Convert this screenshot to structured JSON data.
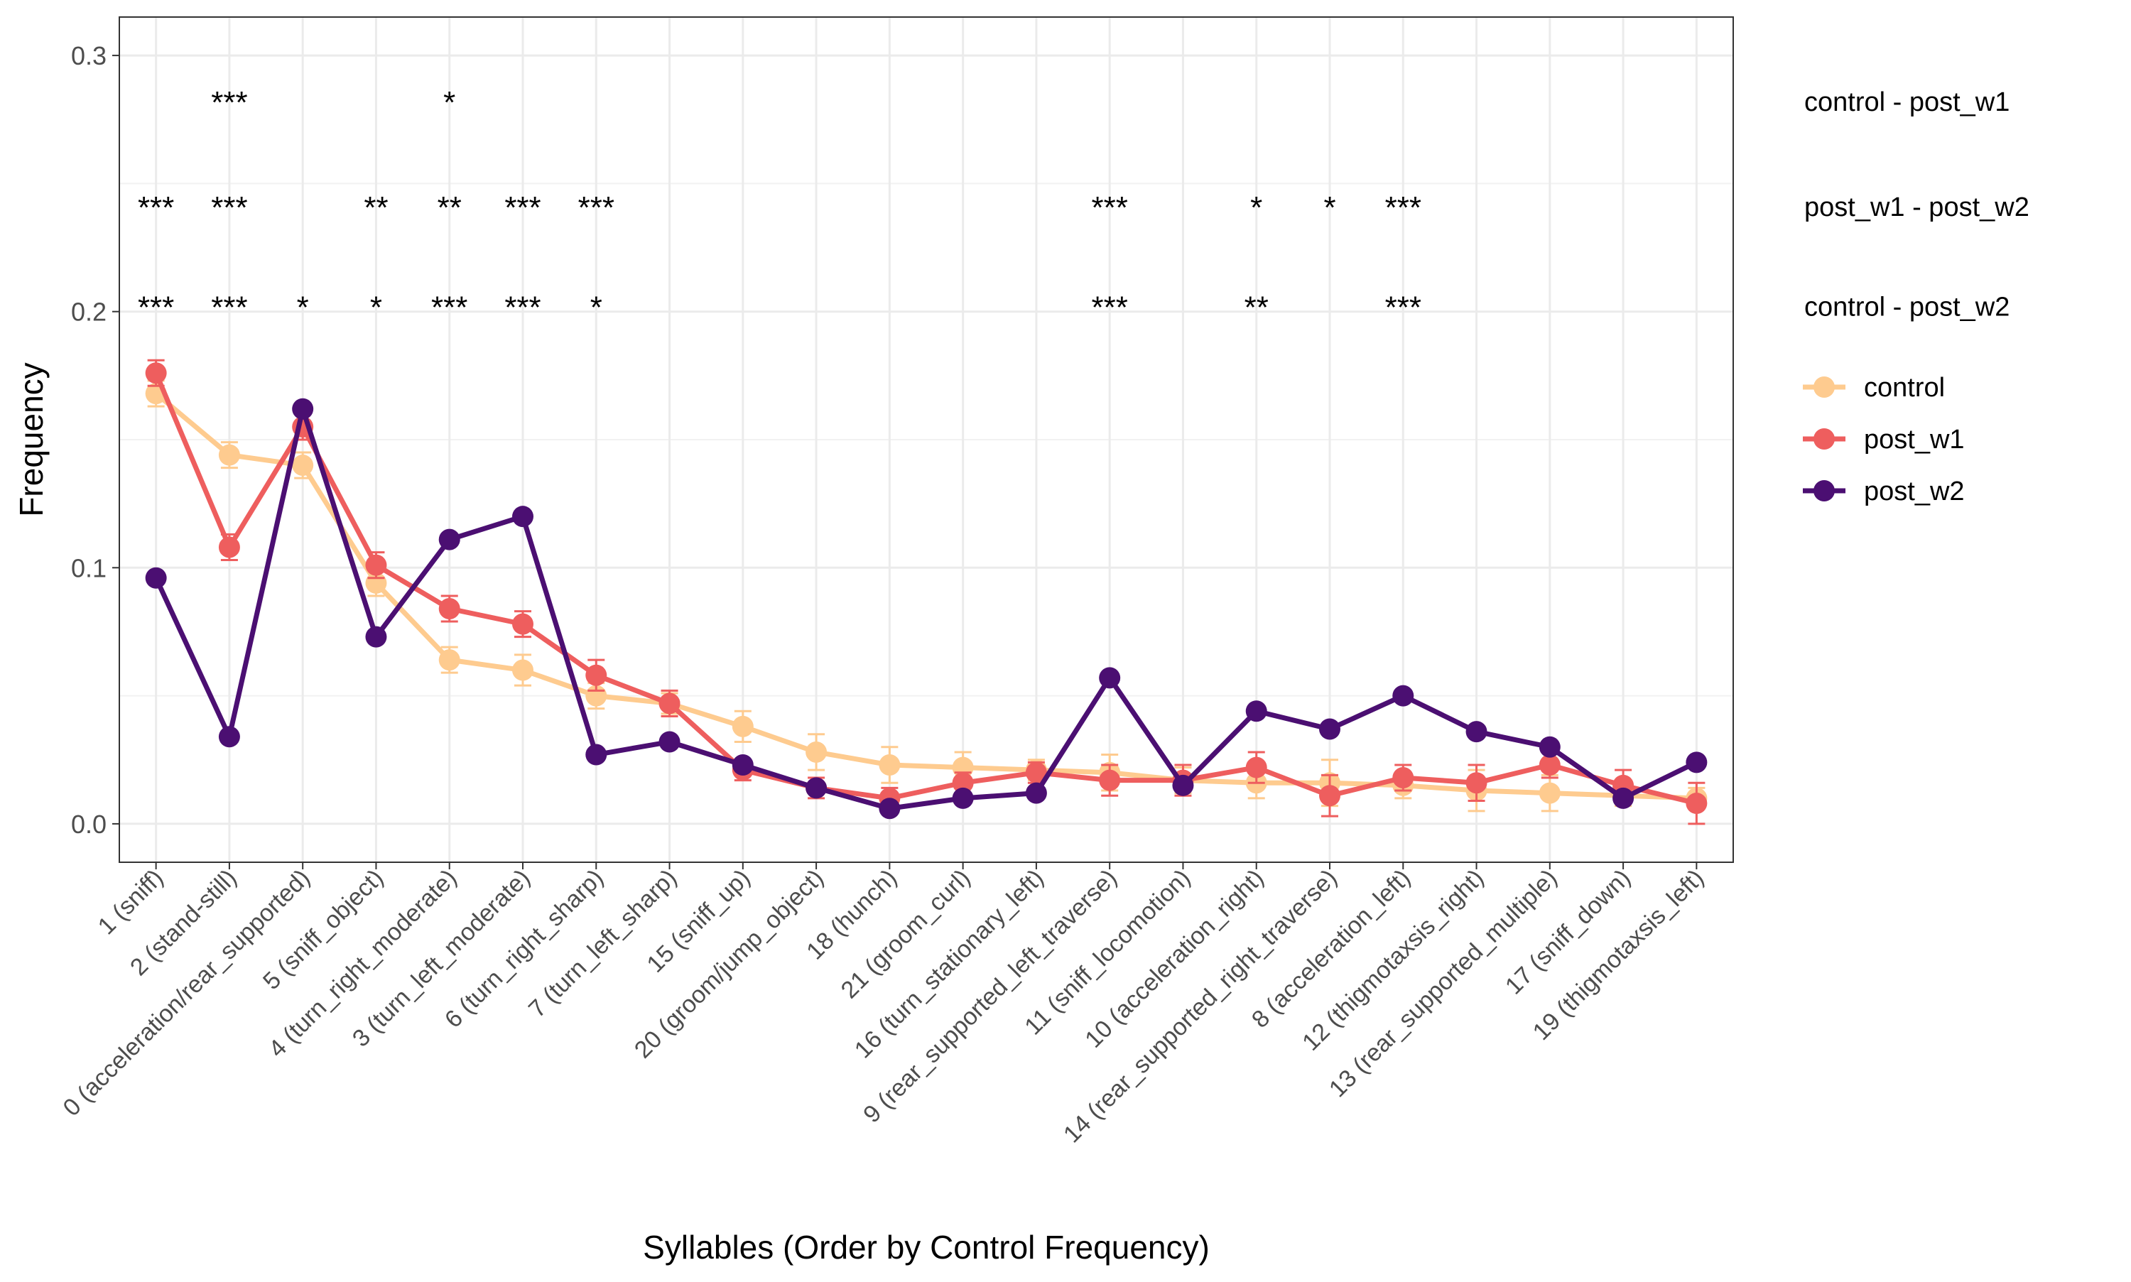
{
  "chart_data": {
    "type": "line",
    "title": "",
    "xlabel": "Syllables (Order by Control Frequency)",
    "ylabel": "Frequency",
    "ylim": [
      -0.015,
      0.315
    ],
    "yticks": [
      0.0,
      0.1,
      0.2,
      0.3
    ],
    "ytick_labels": [
      "0.0",
      "0.1",
      "0.2",
      "0.3"
    ],
    "grid": true,
    "legend_position": "right",
    "categories": [
      "1 (sniff)",
      "2 (stand-still)",
      "0 (acceleration/rear_supported)",
      "5 (sniff_object)",
      "4 (turn_right_moderate)",
      "3 (turn_left_moderate)",
      "6 (turn_right_sharp)",
      "7 (turn_left_sharp)",
      "15 (sniff_up)",
      "20 (groom/jump_object)",
      "18 (hunch)",
      "21 (groom_curl)",
      "16 (turn_stationary_left)",
      "9 (rear_supported_left_traverse)",
      "11 (sniff_locomotion)",
      "10 (acceleration_right)",
      "14 (rear_supported_right_traverse)",
      "8 (acceleration_left)",
      "12 (thigmotaxsis_right)",
      "13 (rear_supported_multiple)",
      "17 (sniff_down)",
      "19 (thigmotaxsis_left)"
    ],
    "series": [
      {
        "name": "control",
        "color": "#FECB8F",
        "values": [
          0.168,
          0.144,
          0.14,
          0.094,
          0.064,
          0.06,
          0.05,
          0.047,
          0.038,
          0.028,
          0.023,
          0.022,
          0.021,
          0.02,
          0.017,
          0.016,
          0.016,
          0.015,
          0.013,
          0.012,
          0.011,
          0.01
        ],
        "errors": [
          0.005,
          0.005,
          0.005,
          0.005,
          0.005,
          0.006,
          0.005,
          0.004,
          0.006,
          0.007,
          0.007,
          0.006,
          0.004,
          0.007,
          0.005,
          0.006,
          0.009,
          0.005,
          0.008,
          0.007,
          0.004,
          0.004
        ]
      },
      {
        "name": "post_w1",
        "color": "#EE5E5E",
        "values": [
          0.176,
          0.108,
          0.155,
          0.101,
          0.084,
          0.078,
          0.058,
          0.047,
          0.021,
          0.014,
          0.01,
          0.016,
          0.02,
          0.017,
          0.017,
          0.022,
          0.011,
          0.018,
          0.016,
          0.023,
          0.015,
          0.008
        ],
        "errors": [
          0.005,
          0.005,
          0.005,
          0.005,
          0.005,
          0.005,
          0.006,
          0.005,
          0.004,
          0.004,
          0.004,
          0.004,
          0.004,
          0.006,
          0.006,
          0.006,
          0.008,
          0.005,
          0.007,
          0.005,
          0.006,
          0.008
        ]
      },
      {
        "name": "post_w2",
        "color": "#4B0F72",
        "values": [
          0.096,
          0.034,
          0.162,
          0.073,
          0.111,
          0.12,
          0.027,
          0.032,
          0.023,
          0.014,
          0.006,
          0.01,
          0.012,
          0.057,
          0.015,
          0.044,
          0.037,
          0.05,
          0.036,
          0.03,
          0.01,
          0.024
        ]
      }
    ],
    "significance_rows": [
      {
        "label": "control - post_w1",
        "y": 0.282,
        "marks": [
          "",
          "***",
          "",
          "",
          "*",
          "",
          "",
          "",
          "",
          "",
          "",
          "",
          "",
          "",
          "",
          "",
          "",
          "",
          "",
          "",
          "",
          ""
        ]
      },
      {
        "label": "post_w1 - post_w2",
        "y": 0.241,
        "marks": [
          "***",
          "***",
          "",
          "**",
          "**",
          "***",
          "***",
          "",
          "",
          "",
          "",
          "",
          "",
          "***",
          "",
          "*",
          "*",
          "***",
          "",
          "",
          "",
          ""
        ]
      },
      {
        "label": "control - post_w2",
        "y": 0.202,
        "marks": [
          "***",
          "***",
          "*",
          "*",
          "***",
          "***",
          "*",
          "",
          "",
          "",
          "",
          "",
          "",
          "***",
          "",
          "**",
          "",
          "***",
          "",
          "",
          "",
          ""
        ]
      }
    ]
  }
}
